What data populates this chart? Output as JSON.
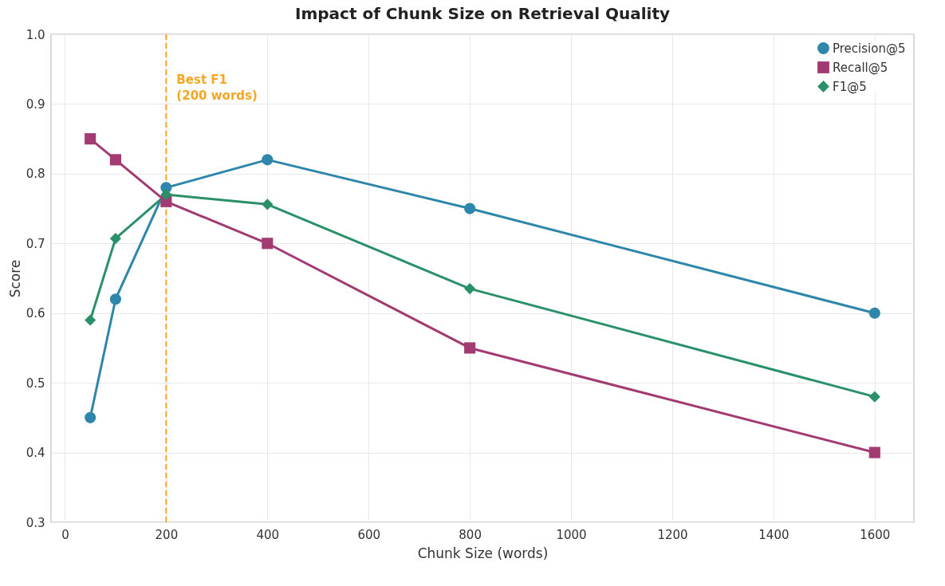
{
  "chart_data": {
    "type": "line",
    "title": "Impact of Chunk Size on Retrieval Quality",
    "xlabel": "Chunk Size (words)",
    "ylabel": "Score",
    "x": [
      50,
      100,
      200,
      400,
      800,
      1600
    ],
    "series": [
      {
        "name": "Precision@5",
        "color": "#2e86ab",
        "marker": "circle",
        "values": [
          0.45,
          0.62,
          0.78,
          0.82,
          0.75,
          0.6
        ]
      },
      {
        "name": "Recall@5",
        "color": "#a23b72",
        "marker": "square",
        "values": [
          0.85,
          0.82,
          0.76,
          0.7,
          0.55,
          0.4
        ]
      },
      {
        "name": "F1@5",
        "color": "#2a9068",
        "marker": "diamond",
        "values": [
          0.59,
          0.707,
          0.77,
          0.756,
          0.635,
          0.48
        ]
      }
    ],
    "xlim": [
      -27.5,
      1677.5
    ],
    "xticks": [
      0,
      200,
      400,
      600,
      800,
      1000,
      1200,
      1400,
      1600
    ],
    "ylim": [
      0.3,
      1.0
    ],
    "yticks": [
      0.3,
      0.4,
      0.5,
      0.6,
      0.7,
      0.8,
      0.9,
      {
        "value": 1.0,
        "label": "1.0"
      }
    ],
    "ref_lines": [
      {
        "axis": "x",
        "value": 200,
        "label": "Best F1\n(200 words)",
        "color": "#f5a623",
        "line_style": "dashed"
      }
    ],
    "grid": true,
    "legend": "top right",
    "line_style": "solid"
  }
}
